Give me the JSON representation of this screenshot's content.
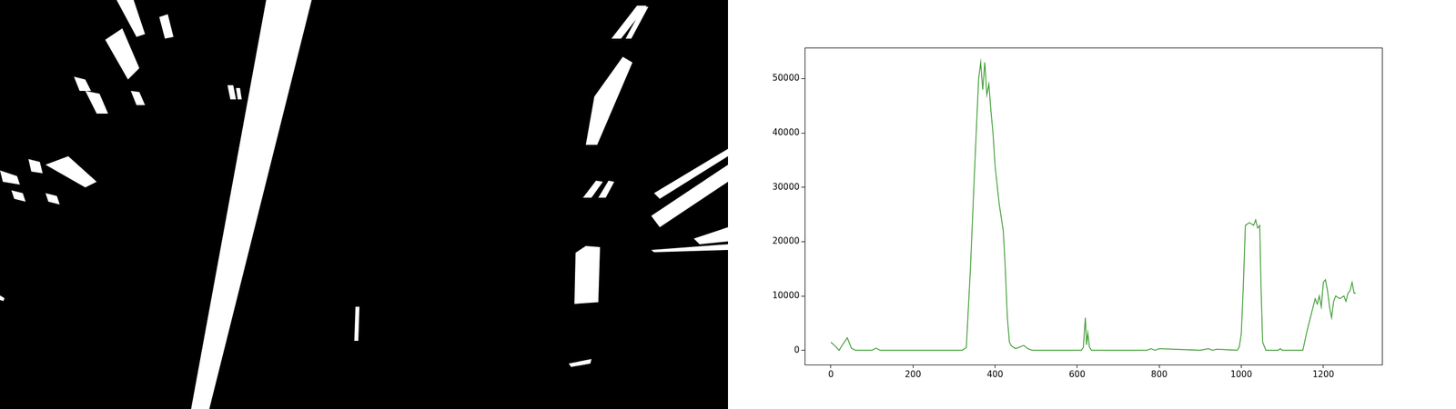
{
  "chart_data": {
    "type": "line",
    "x": [
      0,
      10,
      20,
      30,
      40,
      50,
      60,
      100,
      110,
      120,
      320,
      330,
      340,
      350,
      360,
      365,
      370,
      375,
      380,
      385,
      390,
      395,
      400,
      410,
      420,
      425,
      430,
      435,
      440,
      450,
      460,
      470,
      480,
      490,
      500,
      610,
      615,
      620,
      623,
      626,
      630,
      635,
      640,
      770,
      780,
      790,
      800,
      900,
      920,
      930,
      940,
      990,
      995,
      1000,
      1005,
      1010,
      1020,
      1030,
      1035,
      1040,
      1045,
      1048,
      1052,
      1060,
      1090,
      1095,
      1100,
      1150,
      1160,
      1170,
      1180,
      1185,
      1190,
      1195,
      1200,
      1205,
      1210,
      1215,
      1220,
      1225,
      1230,
      1240,
      1250,
      1255,
      1260,
      1265,
      1270,
      1275,
      1279
    ],
    "values": [
      1500,
      800,
      0,
      1200,
      2300,
      400,
      0,
      0,
      400,
      0,
      0,
      500,
      15000,
      33000,
      50000,
      53000,
      48000,
      53000,
      47000,
      49000,
      44000,
      40000,
      34000,
      27000,
      22000,
      15000,
      6000,
      1500,
      800,
      300,
      600,
      900,
      300,
      0,
      0,
      0,
      500,
      6000,
      1000,
      3200,
      600,
      0,
      0,
      0,
      300,
      0,
      300,
      0,
      300,
      0,
      200,
      0,
      600,
      3000,
      12000,
      23000,
      23500,
      23000,
      24000,
      22500,
      23000,
      12000,
      1500,
      0,
      0,
      300,
      0,
      0,
      3500,
      6500,
      9500,
      8500,
      10000,
      8000,
      12500,
      13000,
      11000,
      8000,
      6000,
      9000,
      10000,
      9500,
      10000,
      9000,
      10500,
      11000,
      12500,
      10500,
      10500
    ],
    "color": "#3c9a31",
    "xlim": [
      -64,
      1343
    ],
    "ylim": [
      -2650,
      55700
    ],
    "xticks": [
      0,
      200,
      400,
      600,
      800,
      1000,
      1200
    ],
    "yticks": [
      0,
      10000,
      20000,
      30000,
      40000,
      50000
    ],
    "grid": false
  }
}
